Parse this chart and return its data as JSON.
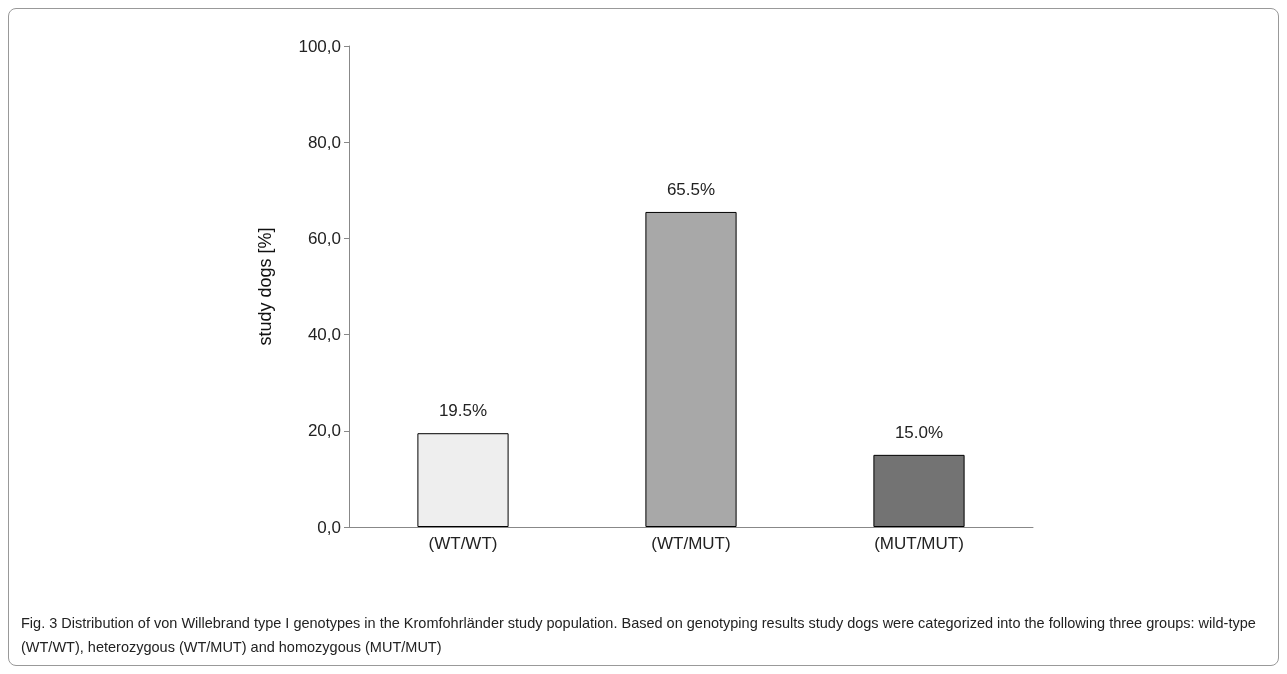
{
  "chart_data": {
    "type": "bar",
    "ylabel": "study dogs [%]",
    "categories": [
      "(WT/WT)",
      "(WT/MUT)",
      "(MUT/MUT)"
    ],
    "values": [
      19.5,
      65.5,
      15.0
    ],
    "colors": [
      "#eeeeee",
      "#a8a8a8",
      "#737373"
    ],
    "value_labels": [
      "19.5%",
      "65.5%",
      "15.0%"
    ],
    "ylim": [
      0,
      100
    ],
    "yticks": [
      {
        "value": 0,
        "label": "0,0"
      },
      {
        "value": 20,
        "label": "20,0"
      },
      {
        "value": 40,
        "label": "40,0"
      },
      {
        "value": 60,
        "label": "60,0"
      },
      {
        "value": 80,
        "label": "80,0"
      },
      {
        "value": 100,
        "label": "100,0"
      }
    ],
    "grid": false,
    "annotations": [
      "Fig. 3 Distribution of von Willebrand type I genotypes in the Kromfohrländer study population. Based on genotyping results study dogs were categorized into the following three groups: wild-type (WT/WT), heterozygous (WT/MUT) and homozygous (MUT/MUT)"
    ]
  }
}
